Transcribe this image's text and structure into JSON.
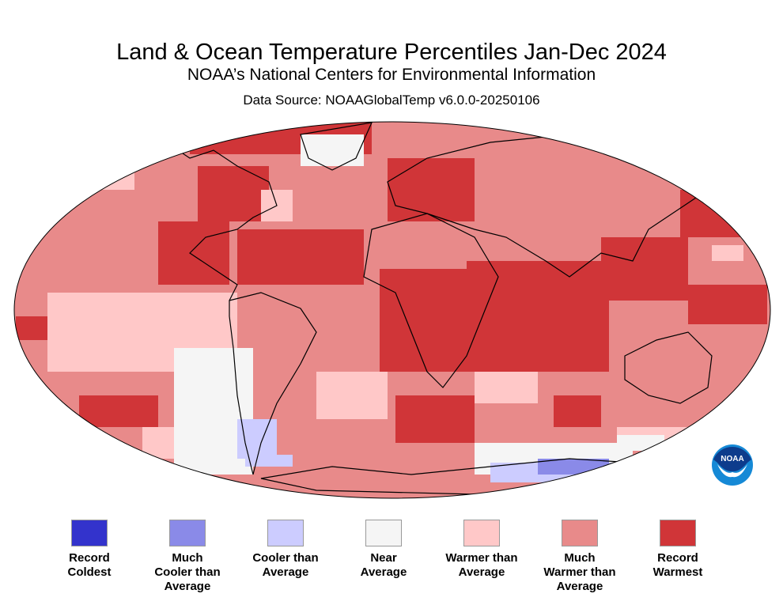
{
  "title": "Land & Ocean Temperature Percentiles Jan-Dec 2024",
  "subtitle": "NOAA’s National Centers for Environmental Information",
  "source": "Data Source: NOAAGlobalTemp v6.0.0-20250106",
  "legend": [
    {
      "label": "Record\nColdest",
      "color": "#3333cc"
    },
    {
      "label": "Much\nCooler than\nAverage",
      "color": "#8a8ae8"
    },
    {
      "label": "Cooler than\nAverage",
      "color": "#ccccff"
    },
    {
      "label": "Near\nAverage",
      "color": "#f5f5f5"
    },
    {
      "label": "Warmer than\nAverage",
      "color": "#ffc8c8"
    },
    {
      "label": "Much\nWarmer than\nAverage",
      "color": "#e88a8a"
    },
    {
      "label": "Record\nWarmest",
      "color": "#d03538"
    }
  ],
  "logo": {
    "text": "NOAA",
    "colors": [
      "#0d3c8c",
      "#1589d6"
    ]
  }
}
